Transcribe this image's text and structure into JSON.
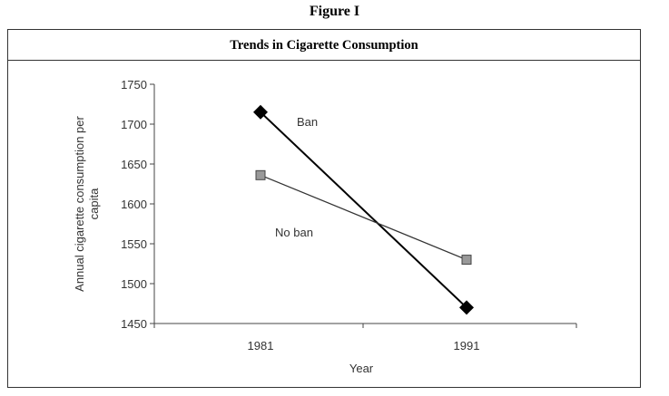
{
  "figure_label": "Figure I",
  "chart_data": {
    "type": "line",
    "title": "Trends in Cigarette Consumption",
    "xlabel": "Year",
    "ylabel": "Annual cigarette consumption per capita",
    "categories": [
      "1981",
      "1991"
    ],
    "ylim": [
      1450,
      1750
    ],
    "yticks": [
      1450,
      1500,
      1550,
      1600,
      1650,
      1700,
      1750
    ],
    "grid": false,
    "legend": "none",
    "series": [
      {
        "name": "Ban",
        "values": [
          1715,
          1470
        ],
        "color": "#000000",
        "marker": "diamond"
      },
      {
        "name": "No ban",
        "values": [
          1636,
          1530
        ],
        "color": "#333333",
        "marker": "square"
      }
    ]
  }
}
